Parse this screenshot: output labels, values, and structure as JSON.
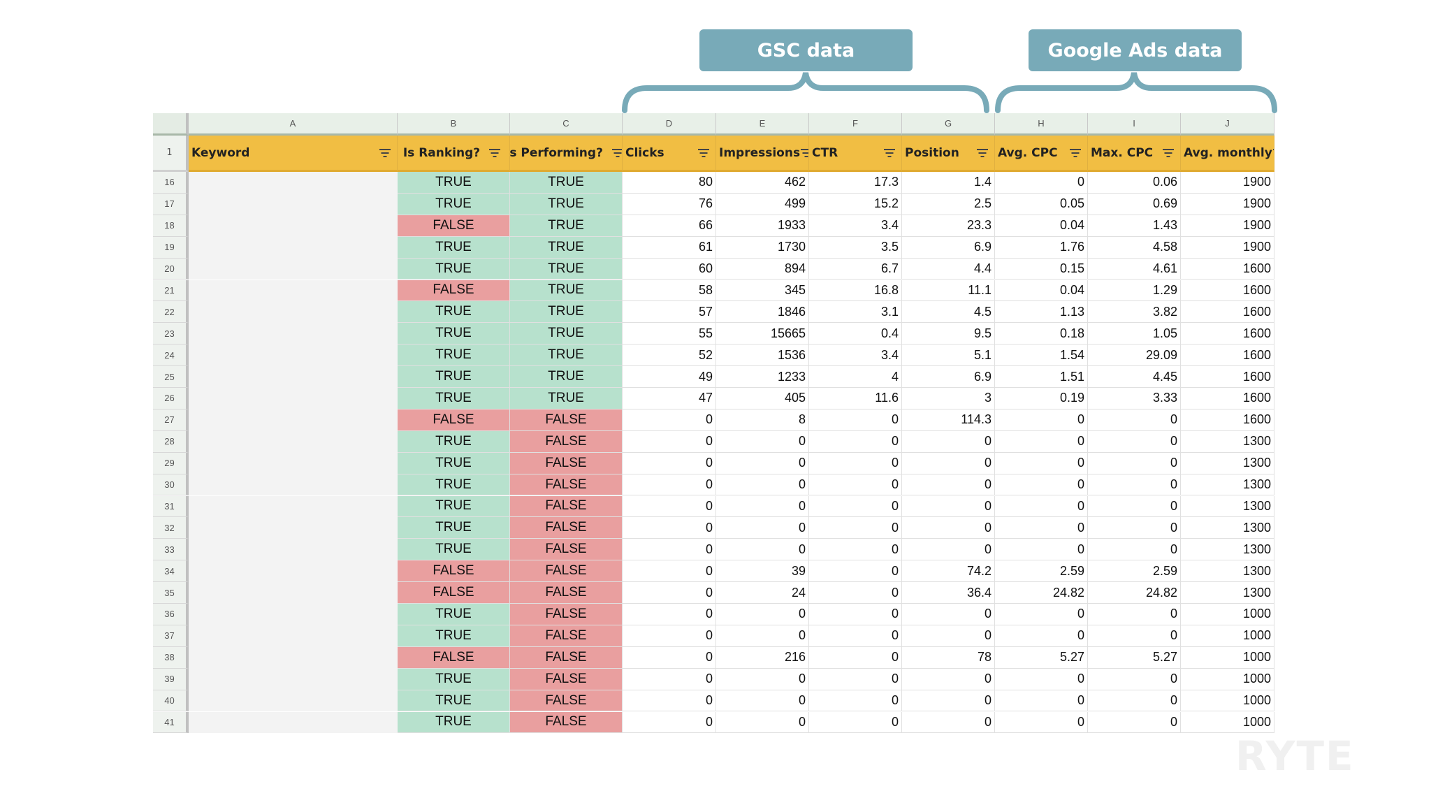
{
  "callouts": {
    "gsc": "GSC data",
    "ads": "Google Ads data"
  },
  "column_letters": [
    "A",
    "B",
    "C",
    "D",
    "E",
    "F",
    "G",
    "H",
    "I",
    "J"
  ],
  "header_row_number": "1",
  "headers": [
    "Keyword",
    "Is Ranking?",
    "Is Performing?",
    "Clicks",
    "Impressions",
    "CTR",
    "Position",
    "Avg. CPC",
    "Max. CPC",
    "Avg. monthly"
  ],
  "colors": {
    "header_bg": "#f1be43",
    "true_bg": "#b7e1cd",
    "false_bg": "#e99f9f",
    "callout_bg": "#78aab8"
  },
  "watermark": "RYTE",
  "rows": [
    {
      "n": "16",
      "r": "TRUE",
      "p": "TRUE",
      "clicks": "80",
      "imp": "462",
      "ctr": "17.3",
      "pos": "1.4",
      "avg_cpc": "0",
      "max_cpc": "0.06",
      "monthly": "1900"
    },
    {
      "n": "17",
      "r": "TRUE",
      "p": "TRUE",
      "clicks": "76",
      "imp": "499",
      "ctr": "15.2",
      "pos": "2.5",
      "avg_cpc": "0.05",
      "max_cpc": "0.69",
      "monthly": "1900"
    },
    {
      "n": "18",
      "r": "FALSE",
      "p": "TRUE",
      "clicks": "66",
      "imp": "1933",
      "ctr": "3.4",
      "pos": "23.3",
      "avg_cpc": "0.04",
      "max_cpc": "1.43",
      "monthly": "1900"
    },
    {
      "n": "19",
      "r": "TRUE",
      "p": "TRUE",
      "clicks": "61",
      "imp": "1730",
      "ctr": "3.5",
      "pos": "6.9",
      "avg_cpc": "1.76",
      "max_cpc": "4.58",
      "monthly": "1900"
    },
    {
      "n": "20",
      "r": "TRUE",
      "p": "TRUE",
      "clicks": "60",
      "imp": "894",
      "ctr": "6.7",
      "pos": "4.4",
      "avg_cpc": "0.15",
      "max_cpc": "4.61",
      "monthly": "1600"
    },
    {
      "n": "21",
      "r": "FALSE",
      "p": "TRUE",
      "clicks": "58",
      "imp": "345",
      "ctr": "16.8",
      "pos": "11.1",
      "avg_cpc": "0.04",
      "max_cpc": "1.29",
      "monthly": "1600"
    },
    {
      "n": "22",
      "r": "TRUE",
      "p": "TRUE",
      "clicks": "57",
      "imp": "1846",
      "ctr": "3.1",
      "pos": "4.5",
      "avg_cpc": "1.13",
      "max_cpc": "3.82",
      "monthly": "1600"
    },
    {
      "n": "23",
      "r": "TRUE",
      "p": "TRUE",
      "clicks": "55",
      "imp": "15665",
      "ctr": "0.4",
      "pos": "9.5",
      "avg_cpc": "0.18",
      "max_cpc": "1.05",
      "monthly": "1600"
    },
    {
      "n": "24",
      "r": "TRUE",
      "p": "TRUE",
      "clicks": "52",
      "imp": "1536",
      "ctr": "3.4",
      "pos": "5.1",
      "avg_cpc": "1.54",
      "max_cpc": "29.09",
      "monthly": "1600"
    },
    {
      "n": "25",
      "r": "TRUE",
      "p": "TRUE",
      "clicks": "49",
      "imp": "1233",
      "ctr": "4",
      "pos": "6.9",
      "avg_cpc": "1.51",
      "max_cpc": "4.45",
      "monthly": "1600"
    },
    {
      "n": "26",
      "r": "TRUE",
      "p": "TRUE",
      "clicks": "47",
      "imp": "405",
      "ctr": "11.6",
      "pos": "3",
      "avg_cpc": "0.19",
      "max_cpc": "3.33",
      "monthly": "1600"
    },
    {
      "n": "27",
      "r": "FALSE",
      "p": "FALSE",
      "clicks": "0",
      "imp": "8",
      "ctr": "0",
      "pos": "114.3",
      "avg_cpc": "0",
      "max_cpc": "0",
      "monthly": "1600"
    },
    {
      "n": "28",
      "r": "TRUE",
      "p": "FALSE",
      "clicks": "0",
      "imp": "0",
      "ctr": "0",
      "pos": "0",
      "avg_cpc": "0",
      "max_cpc": "0",
      "monthly": "1300"
    },
    {
      "n": "29",
      "r": "TRUE",
      "p": "FALSE",
      "clicks": "0",
      "imp": "0",
      "ctr": "0",
      "pos": "0",
      "avg_cpc": "0",
      "max_cpc": "0",
      "monthly": "1300"
    },
    {
      "n": "30",
      "r": "TRUE",
      "p": "FALSE",
      "clicks": "0",
      "imp": "0",
      "ctr": "0",
      "pos": "0",
      "avg_cpc": "0",
      "max_cpc": "0",
      "monthly": "1300"
    },
    {
      "n": "31",
      "r": "TRUE",
      "p": "FALSE",
      "clicks": "0",
      "imp": "0",
      "ctr": "0",
      "pos": "0",
      "avg_cpc": "0",
      "max_cpc": "0",
      "monthly": "1300"
    },
    {
      "n": "32",
      "r": "TRUE",
      "p": "FALSE",
      "clicks": "0",
      "imp": "0",
      "ctr": "0",
      "pos": "0",
      "avg_cpc": "0",
      "max_cpc": "0",
      "monthly": "1300"
    },
    {
      "n": "33",
      "r": "TRUE",
      "p": "FALSE",
      "clicks": "0",
      "imp": "0",
      "ctr": "0",
      "pos": "0",
      "avg_cpc": "0",
      "max_cpc": "0",
      "monthly": "1300"
    },
    {
      "n": "34",
      "r": "FALSE",
      "p": "FALSE",
      "clicks": "0",
      "imp": "39",
      "ctr": "0",
      "pos": "74.2",
      "avg_cpc": "2.59",
      "max_cpc": "2.59",
      "monthly": "1300"
    },
    {
      "n": "35",
      "r": "FALSE",
      "p": "FALSE",
      "clicks": "0",
      "imp": "24",
      "ctr": "0",
      "pos": "36.4",
      "avg_cpc": "24.82",
      "max_cpc": "24.82",
      "monthly": "1300"
    },
    {
      "n": "36",
      "r": "TRUE",
      "p": "FALSE",
      "clicks": "0",
      "imp": "0",
      "ctr": "0",
      "pos": "0",
      "avg_cpc": "0",
      "max_cpc": "0",
      "monthly": "1000"
    },
    {
      "n": "37",
      "r": "TRUE",
      "p": "FALSE",
      "clicks": "0",
      "imp": "0",
      "ctr": "0",
      "pos": "0",
      "avg_cpc": "0",
      "max_cpc": "0",
      "monthly": "1000"
    },
    {
      "n": "38",
      "r": "FALSE",
      "p": "FALSE",
      "clicks": "0",
      "imp": "216",
      "ctr": "0",
      "pos": "78",
      "avg_cpc": "5.27",
      "max_cpc": "5.27",
      "monthly": "1000"
    },
    {
      "n": "39",
      "r": "TRUE",
      "p": "FALSE",
      "clicks": "0",
      "imp": "0",
      "ctr": "0",
      "pos": "0",
      "avg_cpc": "0",
      "max_cpc": "0",
      "monthly": "1000"
    },
    {
      "n": "40",
      "r": "TRUE",
      "p": "FALSE",
      "clicks": "0",
      "imp": "0",
      "ctr": "0",
      "pos": "0",
      "avg_cpc": "0",
      "max_cpc": "0",
      "monthly": "1000"
    },
    {
      "n": "41",
      "r": "TRUE",
      "p": "FALSE",
      "clicks": "0",
      "imp": "0",
      "ctr": "0",
      "pos": "0",
      "avg_cpc": "0",
      "max_cpc": "0",
      "monthly": "1000"
    }
  ]
}
